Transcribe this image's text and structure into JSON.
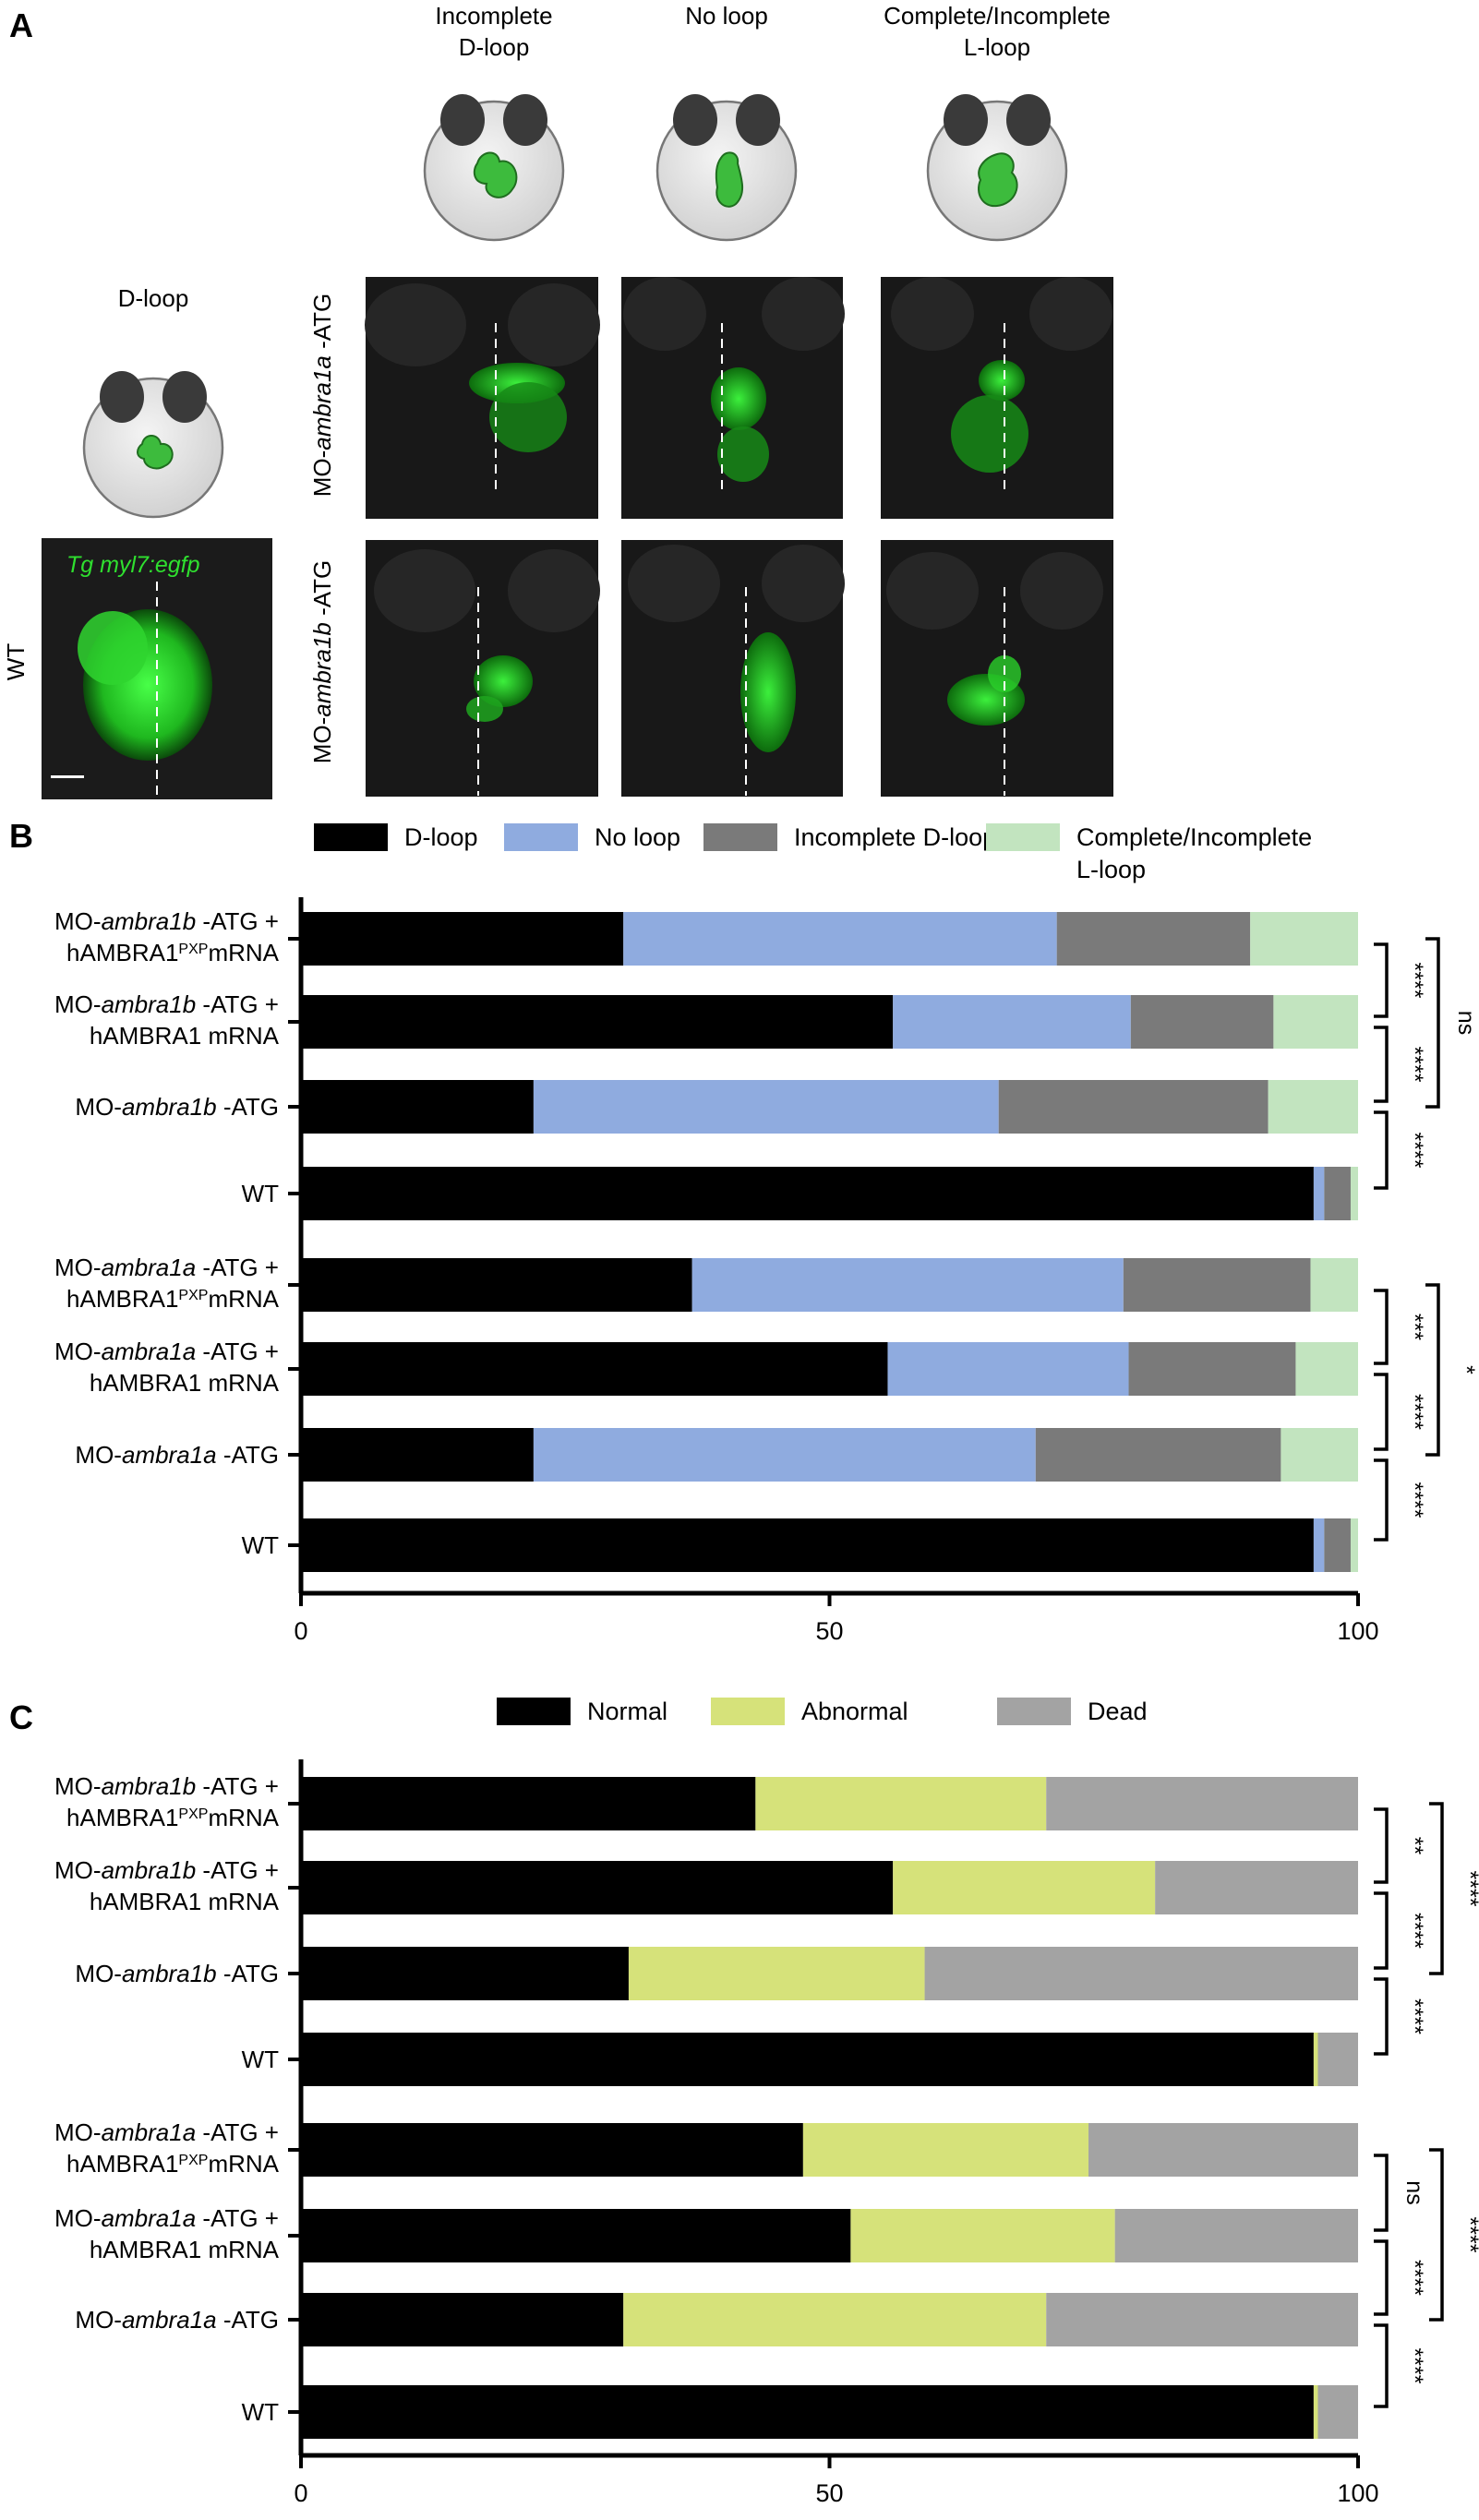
{
  "panels": {
    "a": "A",
    "b": "B",
    "c": "C"
  },
  "panel_a": {
    "column_headers": [
      {
        "line1": "Incomplete",
        "line2": "D-loop"
      },
      {
        "line1": "No loop",
        "line2": ""
      },
      {
        "line1": "Complete/Incomplete",
        "line2": "L-loop"
      }
    ],
    "dloop_label": "D-loop",
    "wt_label": "WT",
    "wt_image_label": "Tg myl7:egfp",
    "row_labels": [
      {
        "prefix": "MO-",
        "gene": "ambra1a",
        "suffix": " -ATG"
      },
      {
        "prefix": "MO-",
        "gene": "ambra1b",
        "suffix": " -ATG"
      }
    ],
    "colors": {
      "heart": "#3dbb3d",
      "fluorescence": "#2fe02f",
      "embryo": "#e8e8e8",
      "eyes": "#3a3a3a"
    }
  },
  "chart_data": [
    {
      "type": "bar",
      "orientation": "horizontal",
      "stacked": true,
      "legend": [
        "D-loop",
        "No loop",
        "Incomplete D-loop",
        "Complete/Incomplete L-loop"
      ],
      "legend_display": [
        [
          "D-loop"
        ],
        [
          "No loop"
        ],
        [
          "Incomplete D-loop"
        ],
        [
          "Complete/Incomplete",
          "L-loop"
        ]
      ],
      "colors": [
        "#000000",
        "#8fabdf",
        "#7a7a7a",
        "#c2e4bf"
      ],
      "categories": [
        {
          "line1": [
            "MO-",
            "ambra1b",
            " -ATG +"
          ],
          "line2": [
            "hAMBRA1",
            "PXP",
            "mRNA"
          ]
        },
        {
          "line1": [
            "MO-",
            "ambra1b",
            " -ATG +"
          ],
          "line2": [
            "hAMBRA1 mRNA"
          ]
        },
        {
          "line1": [
            "MO-",
            "ambra1b",
            " -ATG"
          ]
        },
        {
          "line1": [
            "WT"
          ]
        },
        {
          "line1": [
            "MO-",
            "ambra1a",
            " -ATG +"
          ],
          "line2": [
            "hAMBRA1",
            "PXP",
            "mRNA"
          ]
        },
        {
          "line1": [
            "MO-",
            "ambra1a",
            " -ATG +"
          ],
          "line2": [
            "hAMBRA1 mRNA"
          ]
        },
        {
          "line1": [
            "MO-",
            "ambra1a",
            " -ATG"
          ]
        },
        {
          "line1": [
            "WT"
          ]
        }
      ],
      "series": [
        {
          "name": "D-loop",
          "values": [
            30.5,
            56.0,
            22.0,
            95.8,
            37.0,
            55.5,
            22.0,
            95.8
          ]
        },
        {
          "name": "No loop",
          "values": [
            41.0,
            22.5,
            44.0,
            1.0,
            40.8,
            22.8,
            47.5,
            1.0
          ]
        },
        {
          "name": "Incomplete D-loop",
          "values": [
            18.3,
            13.5,
            25.5,
            2.5,
            17.7,
            15.8,
            23.2,
            2.5
          ]
        },
        {
          "name": "Complete/Incomplete L-loop",
          "values": [
            10.2,
            8.0,
            8.5,
            0.7,
            4.5,
            5.9,
            7.3,
            0.7
          ]
        }
      ],
      "x_ticks": [
        "0",
        "50",
        "100"
      ],
      "xlim": [
        0,
        100
      ],
      "significance": [
        {
          "rows": [
            0,
            1
          ],
          "label": "****"
        },
        {
          "rows": [
            1,
            2
          ],
          "label": "****"
        },
        {
          "rows": [
            2,
            3
          ],
          "label": "****"
        },
        {
          "rows": [
            0,
            2
          ],
          "label": "ns"
        },
        {
          "rows": [
            4,
            5
          ],
          "label": "***"
        },
        {
          "rows": [
            5,
            6
          ],
          "label": "****"
        },
        {
          "rows": [
            6,
            7
          ],
          "label": "****"
        },
        {
          "rows": [
            4,
            6
          ],
          "label": "*"
        }
      ]
    },
    {
      "type": "bar",
      "orientation": "horizontal",
      "stacked": true,
      "legend": [
        "Normal",
        "Abnormal",
        "Dead"
      ],
      "legend_display": [
        [
          "Normal"
        ],
        [
          "Abnormal"
        ],
        [
          "Dead"
        ]
      ],
      "colors": [
        "#000000",
        "#d6e27a",
        "#a3a3a3"
      ],
      "categories": [
        {
          "line1": [
            "MO-",
            "ambra1b",
            " -ATG +"
          ],
          "line2": [
            "hAMBRA1",
            "PXP",
            "mRNA"
          ]
        },
        {
          "line1": [
            "MO-",
            "ambra1b",
            " -ATG +"
          ],
          "line2": [
            "hAMBRA1 mRNA"
          ]
        },
        {
          "line1": [
            "MO-",
            "ambra1b",
            " -ATG"
          ]
        },
        {
          "line1": [
            "WT"
          ]
        },
        {
          "line1": [
            "MO-",
            "ambra1a",
            " -ATG +"
          ],
          "line2": [
            "hAMBRA1",
            "PXP",
            "mRNA"
          ]
        },
        {
          "line1": [
            "MO-",
            "ambra1a",
            " -ATG +"
          ],
          "line2": [
            "hAMBRA1 mRNA"
          ]
        },
        {
          "line1": [
            "MO-",
            "ambra1a",
            " -ATG"
          ]
        },
        {
          "line1": [
            "WT"
          ]
        }
      ],
      "series": [
        {
          "name": "Normal",
          "values": [
            43.0,
            56.0,
            31.0,
            95.8,
            47.5,
            52.0,
            30.5,
            95.8
          ]
        },
        {
          "name": "Abnormal",
          "values": [
            27.5,
            24.8,
            28.0,
            0.4,
            27.0,
            25.0,
            40.0,
            0.4
          ]
        },
        {
          "name": "Dead",
          "values": [
            29.5,
            19.2,
            41.0,
            3.8,
            25.5,
            23.0,
            29.5,
            3.8
          ]
        }
      ],
      "x_ticks": [
        "0",
        "50",
        "100"
      ],
      "xlim": [
        0,
        100
      ],
      "significance": [
        {
          "rows": [
            0,
            1
          ],
          "label": "**"
        },
        {
          "rows": [
            1,
            2
          ],
          "label": "****"
        },
        {
          "rows": [
            2,
            3
          ],
          "label": "****"
        },
        {
          "rows": [
            0,
            2
          ],
          "label": "****"
        },
        {
          "rows": [
            4,
            5
          ],
          "label": "ns"
        },
        {
          "rows": [
            5,
            6
          ],
          "label": "****"
        },
        {
          "rows": [
            6,
            7
          ],
          "label": "****"
        },
        {
          "rows": [
            4,
            6
          ],
          "label": "****"
        }
      ]
    }
  ]
}
